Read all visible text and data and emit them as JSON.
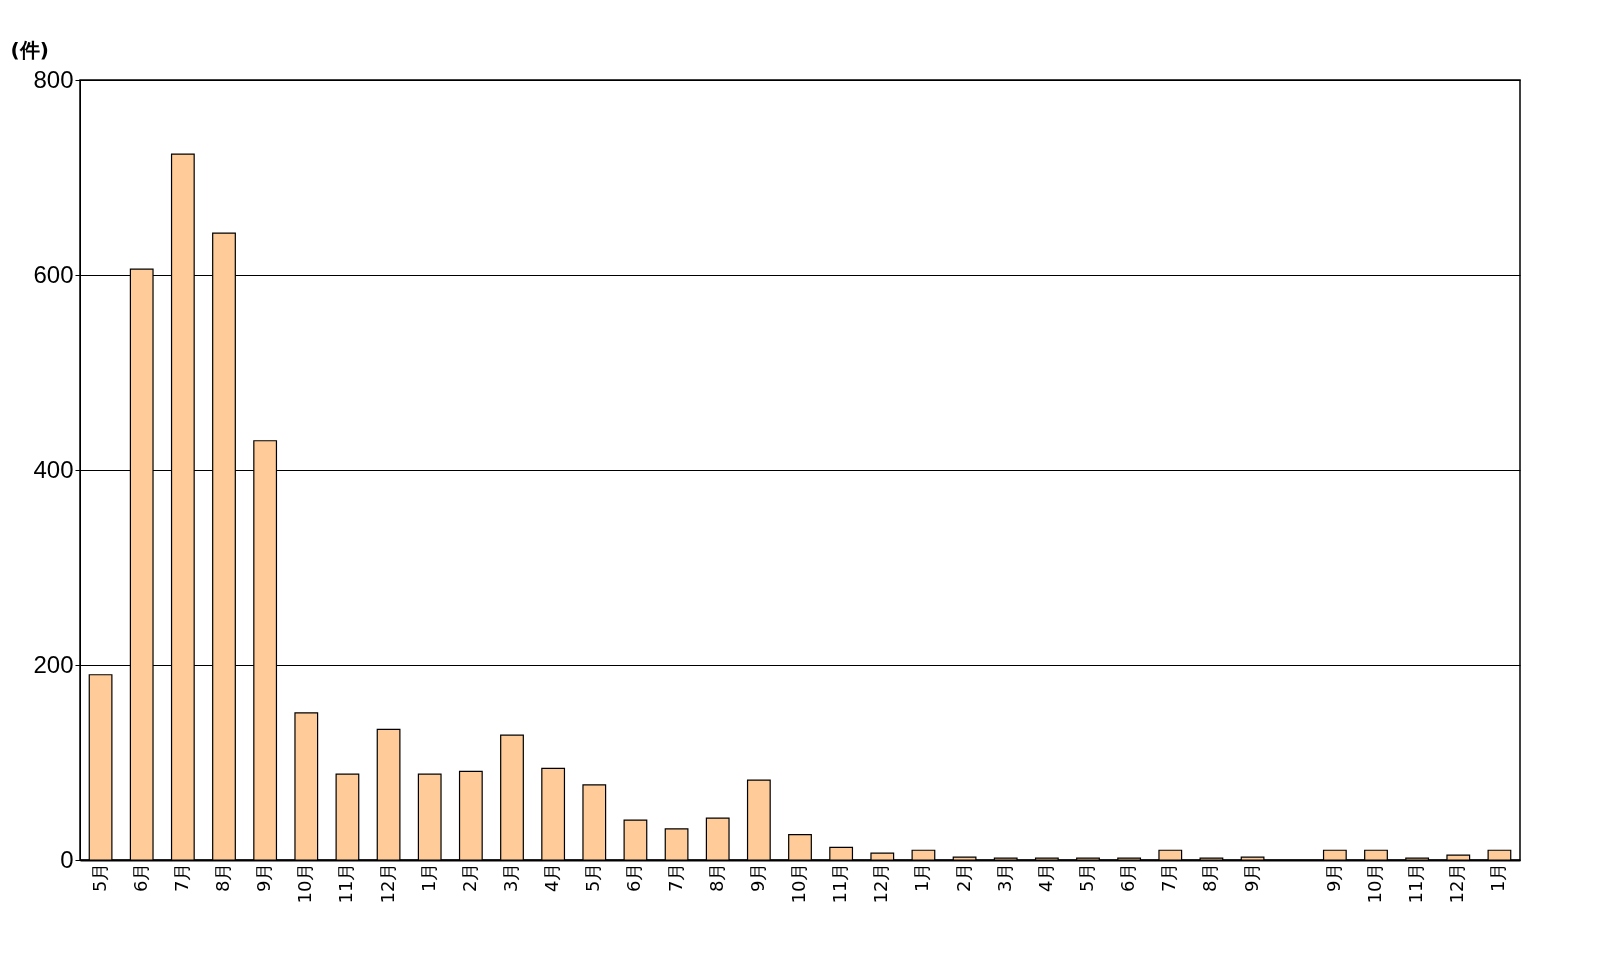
{
  "chart_data": {
    "type": "bar",
    "ylabel": "(件)",
    "categories": [
      "5月",
      "6月",
      "7月",
      "8月",
      "9月",
      "10月",
      "11月",
      "12月",
      "1月",
      "2月",
      "3月",
      "4月",
      "5月",
      "6月",
      "7月",
      "8月",
      "9月",
      "10月",
      "11月",
      "12月",
      "1月",
      "2月",
      "3月",
      "4月",
      "5月",
      "6月",
      "7月",
      "8月",
      "9月",
      null,
      "9月",
      "10月",
      "11月",
      "12月",
      "1月"
    ],
    "values": [
      190,
      606,
      724,
      643,
      430,
      151,
      88,
      134,
      88,
      91,
      128,
      94,
      77,
      41,
      32,
      43,
      82,
      26,
      13,
      7,
      10,
      3,
      2,
      2,
      2,
      2,
      10,
      2,
      3,
      null,
      10,
      10,
      2,
      5,
      10
    ],
    "color": "#ffcc99",
    "ylim": [
      0,
      800
    ],
    "yticks": [
      0,
      200,
      400,
      600,
      800
    ],
    "grid": "y"
  }
}
